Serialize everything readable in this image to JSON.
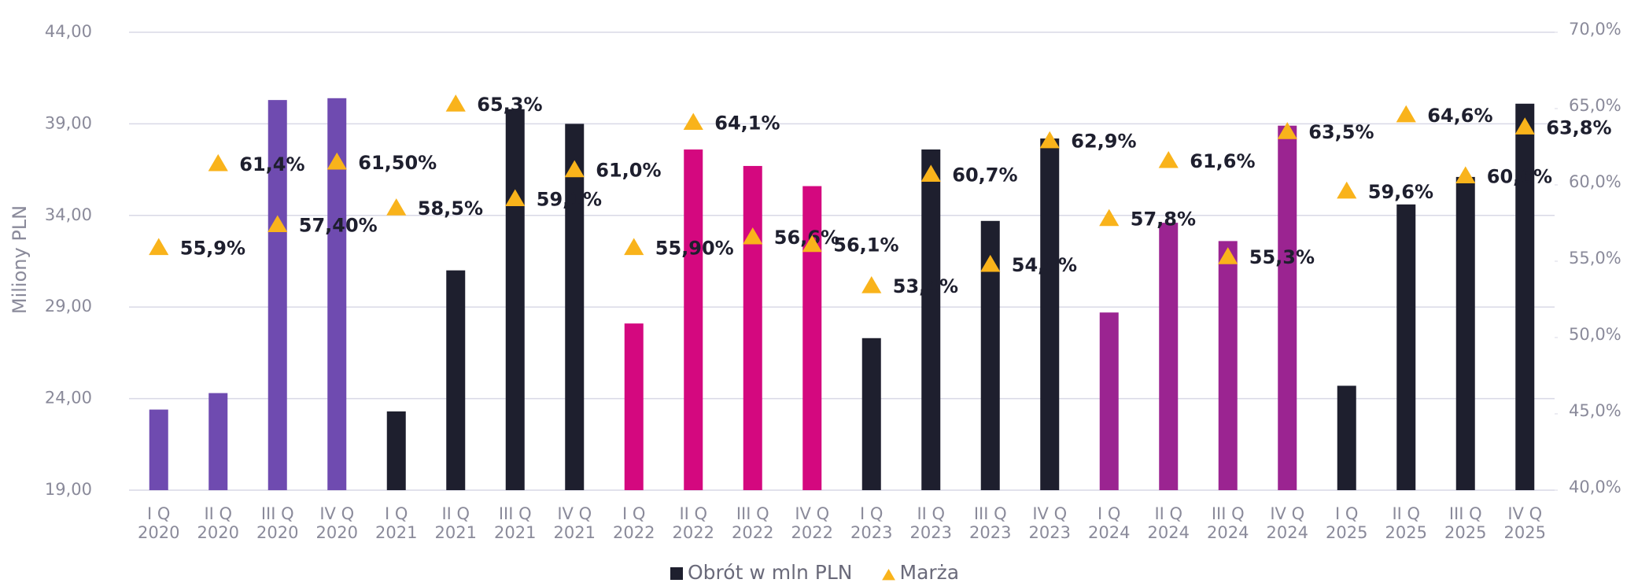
{
  "chart_data": {
    "type": "bar_line",
    "y_label": "Miliony PLN",
    "categories": [
      [
        "I Q",
        "2020"
      ],
      [
        "II Q",
        "2020"
      ],
      [
        "III Q",
        "2020"
      ],
      [
        "IV Q",
        "2020"
      ],
      [
        "I Q",
        "2021"
      ],
      [
        "II Q",
        "2021"
      ],
      [
        "III Q",
        "2021"
      ],
      [
        "IV Q",
        "2021"
      ],
      [
        "I Q",
        "2022"
      ],
      [
        "II Q",
        "2022"
      ],
      [
        "III Q",
        "2022"
      ],
      [
        "IV Q",
        "2022"
      ],
      [
        "I Q",
        "2023"
      ],
      [
        "II Q",
        "2023"
      ],
      [
        "III Q",
        "2023"
      ],
      [
        "IV Q",
        "2023"
      ],
      [
        "I Q",
        "2024"
      ],
      [
        "II Q",
        "2024"
      ],
      [
        "III Q",
        "2024"
      ],
      [
        "IV Q",
        "2024"
      ],
      [
        "I Q",
        "2025"
      ],
      [
        "II Q",
        "2025"
      ],
      [
        "III Q",
        "2025"
      ],
      [
        "IV Q",
        "2025"
      ]
    ],
    "series": [
      {
        "name": "Obrót w mln PLN",
        "type": "bar",
        "color": "#1e1f2e",
        "colors": [
          "#6f4bb0",
          "#6f4bb0",
          "#6f4bb0",
          "#6f4bb0",
          "#1e1f2e",
          "#1e1f2e",
          "#1e1f2e",
          "#1e1f2e",
          "#d4087f",
          "#d4087f",
          "#d4087f",
          "#d4087f",
          "#1e1f2e",
          "#1e1f2e",
          "#1e1f2e",
          "#1e1f2e",
          "#9b2491",
          "#9b2491",
          "#9b2491",
          "#9b2491",
          "#1e1f2e",
          "#1e1f2e",
          "#1e1f2e",
          "#1e1f2e"
        ],
        "values": [
          23.4,
          24.3,
          40.3,
          40.4,
          23.3,
          31.0,
          39.8,
          39.0,
          28.1,
          37.6,
          36.7,
          35.6,
          27.3,
          37.6,
          33.7,
          38.2,
          28.7,
          33.6,
          32.6,
          38.9,
          24.7,
          34.6,
          36.1,
          40.1
        ]
      },
      {
        "name": "Marża",
        "type": "scatter",
        "axis": "y2",
        "color": "#f9b31b",
        "values": [
          55.9,
          61.4,
          57.4,
          61.5,
          58.5,
          65.3,
          59.1,
          61.0,
          55.9,
          64.1,
          56.6,
          56.1,
          53.4,
          60.7,
          54.8,
          62.9,
          57.8,
          61.6,
          55.3,
          63.5,
          59.6,
          64.6,
          60.6,
          63.8
        ],
        "value_labels": [
          "55,9%",
          "61,4%",
          "57,40%",
          "61,50%",
          "58,5%",
          "65,3%",
          "59,1%",
          "61,0%",
          "55,90%",
          "64,1%",
          "56,6%",
          "56,1%",
          "53,4%",
          "60,7%",
          "54,8%",
          "62,9%",
          "57,8%",
          "61,6%",
          "55,3%",
          "63,5%",
          "59,6%",
          "64,6%",
          "60,6%",
          "63,8%"
        ]
      }
    ],
    "ylim": [
      19,
      44
    ],
    "yticks": [
      {
        "value": 19,
        "label": "19,00"
      },
      {
        "value": 24,
        "label": "24,00"
      },
      {
        "value": 29,
        "label": "29,00"
      },
      {
        "value": 34,
        "label": "34,00"
      },
      {
        "value": 39,
        "label": "39,00"
      },
      {
        "value": 44,
        "label": "44,00"
      }
    ],
    "y2lim": [
      40,
      70
    ],
    "y2ticks": [
      {
        "value": 40,
        "label": "40,0%"
      },
      {
        "value": 45,
        "label": "45,0%"
      },
      {
        "value": 50,
        "label": "50,0%"
      },
      {
        "value": 55,
        "label": "55,0%"
      },
      {
        "value": 60,
        "label": "60,0%"
      },
      {
        "value": 65,
        "label": "65,0%"
      },
      {
        "value": 70,
        "label": "70,0%"
      }
    ],
    "grid": true,
    "legend": "bottom"
  }
}
